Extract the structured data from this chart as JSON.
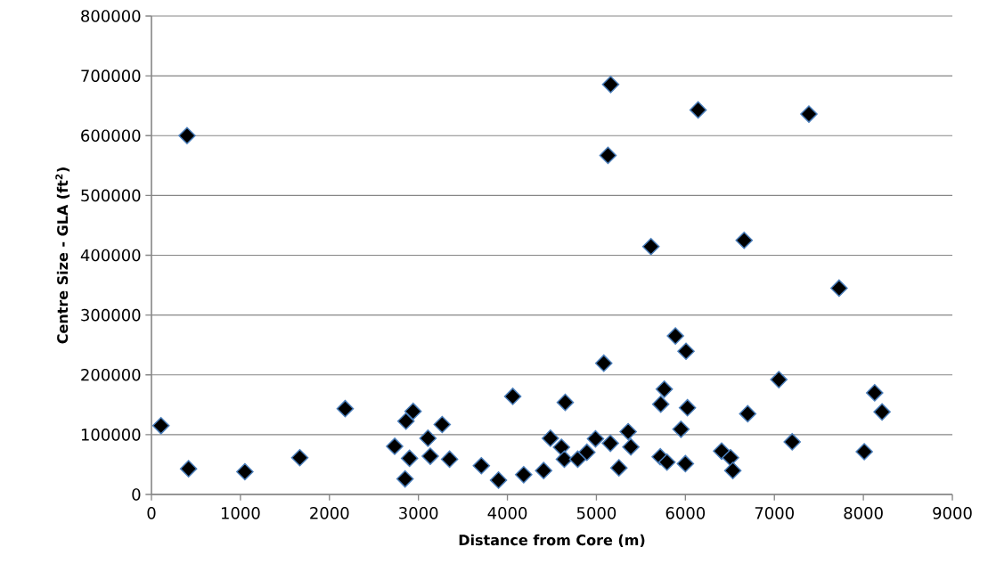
{
  "chart_data": {
    "type": "scatter",
    "xlabel": "Distance from Core (m)",
    "ylabel": "Centre Size - GLA (ft$^{2}$)",
    "x": [
      107,
      417,
      400,
      1050,
      1667,
      2177,
      2733,
      2850,
      2860,
      2940,
      2900,
      3107,
      3267,
      3133,
      3350,
      3707,
      3900,
      4060,
      4183,
      4407,
      4483,
      4607,
      4640,
      4650,
      4790,
      4893,
      4990,
      5083,
      5157,
      5160,
      5130,
      5253,
      5357,
      5387,
      5613,
      5723,
      5763,
      5717,
      5793,
      5888,
      5950,
      6000,
      6007,
      6023,
      6143,
      6407,
      6507,
      6533,
      6660,
      6700,
      7050,
      7200,
      7388,
      7727,
      8010,
      8127,
      8210
    ],
    "values": [
      115000,
      43000,
      600000,
      38000,
      61500,
      143500,
      80500,
      26000,
      122500,
      139000,
      60500,
      94000,
      117000,
      64000,
      59000,
      48000,
      24000,
      164000,
      33000,
      40000,
      94000,
      79000,
      59000,
      154000,
      59000,
      70500,
      93000,
      219500,
      85500,
      685500,
      567000,
      44500,
      105000,
      79500,
      414500,
      151000,
      176000,
      63000,
      54000,
      265000,
      109000,
      51500,
      239500,
      145000,
      643000,
      72500,
      61500,
      40000,
      425000,
      135000,
      192000,
      88000,
      636000,
      345000,
      71500,
      170000,
      138000
    ],
    "color": "#000000",
    "marker": "diamond",
    "grid": "y",
    "xlim": [
      0,
      9000
    ],
    "xticks": [
      0,
      1000,
      2000,
      3000,
      4000,
      5000,
      6000,
      7000,
      8000,
      9000
    ],
    "ylim": [
      0,
      800000
    ],
    "yticks": [
      0,
      100000,
      200000,
      300000,
      400000,
      500000,
      600000,
      700000,
      800000
    ]
  }
}
